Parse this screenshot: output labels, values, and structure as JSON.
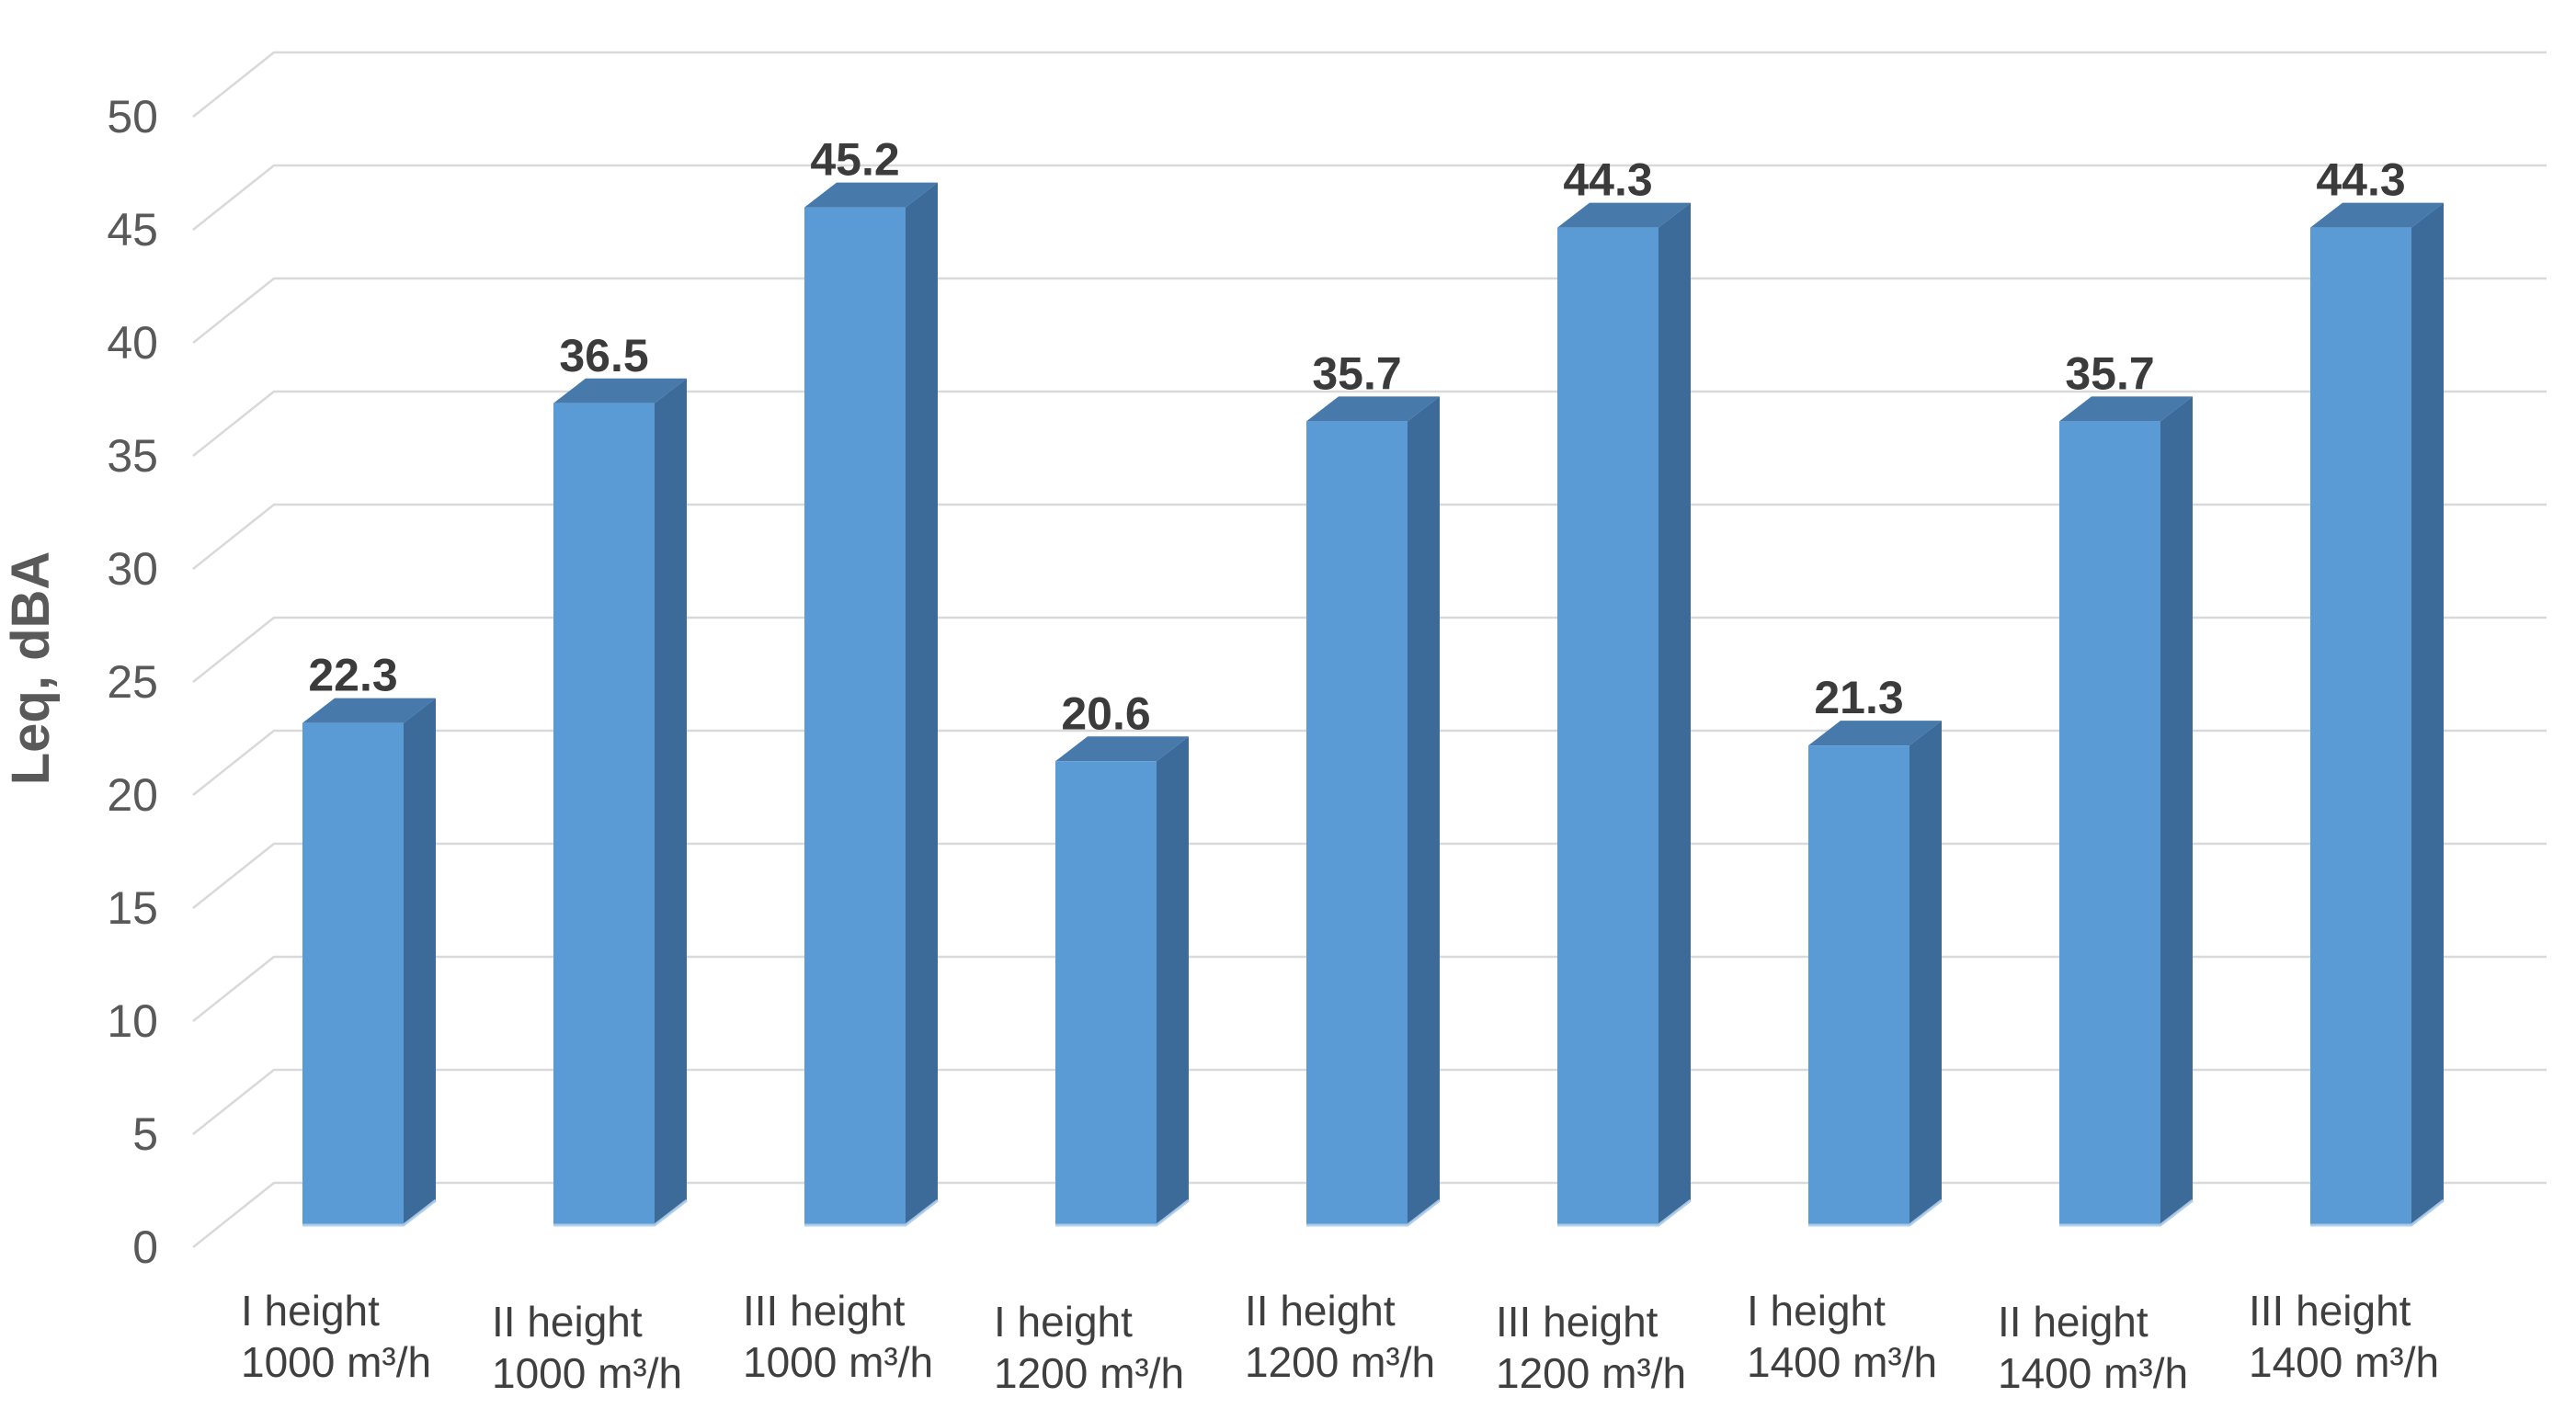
{
  "chart_data": {
    "type": "bar",
    "style": "3d-column",
    "title": "",
    "ylabel": "Leq, dBA",
    "xlabel": "",
    "categories": [
      {
        "line1": "I height",
        "line2": "1000 m³/h"
      },
      {
        "line1": "II height",
        "line2": "1000 m³/h"
      },
      {
        "line1": "III height",
        "line2": "1000 m³/h"
      },
      {
        "line1": "I height",
        "line2": "1200 m³/h"
      },
      {
        "line1": "II height",
        "line2": "1200 m³/h"
      },
      {
        "line1": "III height",
        "line2": "1200 m³/h"
      },
      {
        "line1": "I height",
        "line2": "1400 m³/h"
      },
      {
        "line1": "II height",
        "line2": "1400 m³/h"
      },
      {
        "line1": "III height",
        "line2": "1400 m³/h"
      }
    ],
    "values": [
      22.3,
      36.5,
      45.2,
      20.6,
      35.7,
      44.3,
      21.3,
      35.7,
      44.3
    ],
    "value_labels": [
      "22.3",
      "36.5",
      "45.2",
      "20.6",
      "35.7",
      "44.3",
      "21.3",
      "35.7",
      "44.3"
    ],
    "y_ticks": [
      0,
      5,
      10,
      15,
      20,
      25,
      30,
      35,
      40,
      45,
      50
    ],
    "ylim": [
      0,
      50
    ],
    "grid": true,
    "legend": "none",
    "colors": {
      "bar_front": "#5B9BD5",
      "bar_side": "#3D6B99",
      "bar_top": "#4779AB",
      "bar_edge_highlight": "#AECDEB",
      "gridline": "#D9D9D9",
      "y_tick_text": "#595959",
      "x_label_text": "#3F3F3F",
      "data_label_text": "#3B3B3B",
      "y_title_text": "#595959",
      "background": "#FFFFFF"
    }
  }
}
